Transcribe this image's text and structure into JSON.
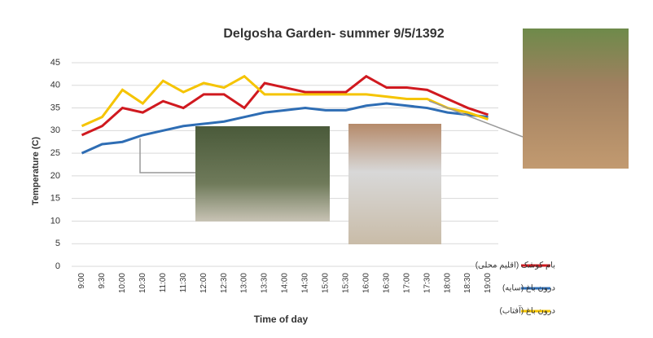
{
  "chart_data": {
    "type": "line",
    "title": "Delgosha Garden- summer 9/5/1392",
    "x_label": "Time of day",
    "y_label": "Temperature (C)",
    "categories": [
      "9:00",
      "9:30",
      "10:00",
      "10:30",
      "11:00",
      "11:30",
      "12:00",
      "12:30",
      "13:00",
      "13:30",
      "14:00",
      "14:30",
      "15:00",
      "15:30",
      "16:00",
      "16:30",
      "17:00",
      "17:30",
      "18:00",
      "18:30",
      "19:00"
    ],
    "series": [
      {
        "name": "بام کوشک (اقلیم محلی)",
        "color": "#d0191f",
        "values": [
          29,
          31,
          35,
          34,
          36.5,
          35,
          38,
          38,
          35,
          40.5,
          39.5,
          38.5,
          38.5,
          38.5,
          42,
          39.5,
          39.5,
          39,
          37,
          35,
          33.5
        ]
      },
      {
        "name": "درون باغ (سایه)",
        "color": "#2e6db4",
        "values": [
          25,
          27,
          27.5,
          29,
          30,
          31,
          31.5,
          32,
          33,
          34,
          34.5,
          35,
          34.5,
          34.5,
          35.5,
          36,
          35.5,
          35,
          34,
          33.5,
          33
        ]
      },
      {
        "name": "درون باغ (آفتاب)",
        "color": "#f5c400",
        "values": [
          31,
          33,
          39,
          36,
          41,
          38.5,
          40.5,
          39.5,
          42,
          38,
          38,
          38,
          38,
          38,
          38,
          37.5,
          37,
          37,
          35,
          34,
          32.5
        ]
      }
    ],
    "ylim": [
      0,
      45
    ],
    "yticks": [
      0,
      5,
      10,
      15,
      20,
      25,
      30,
      35,
      40,
      45
    ],
    "grid": true,
    "legend": "right"
  }
}
